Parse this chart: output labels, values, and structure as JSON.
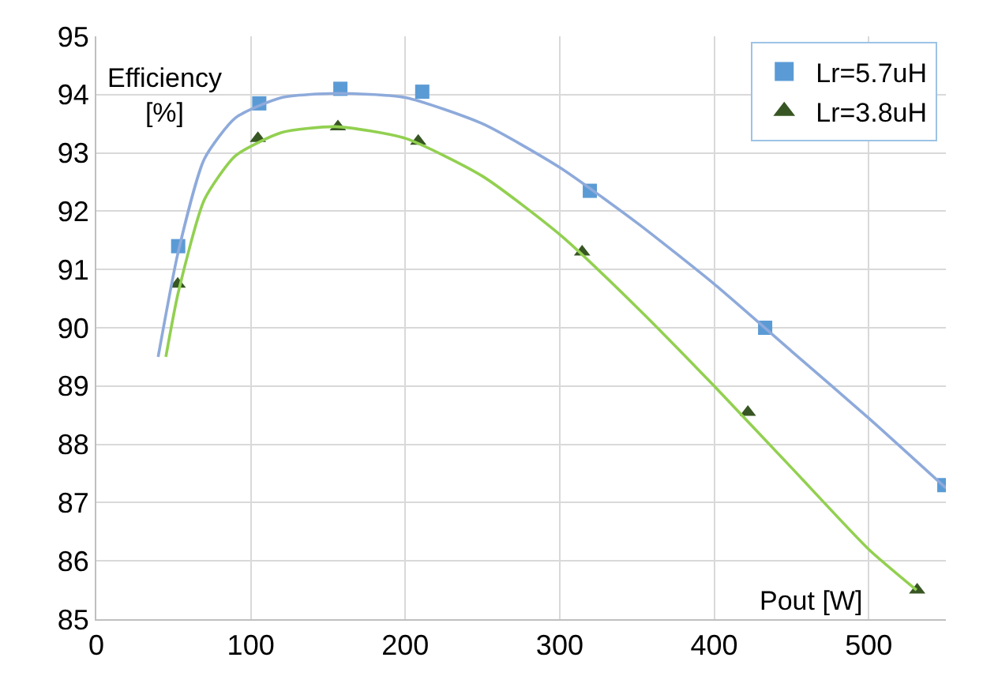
{
  "chart_data": {
    "type": "scatter",
    "xlabel": "Pout [W]",
    "ylabel": "Efficiency\n[%]",
    "xlim": [
      0,
      550
    ],
    "xticks": [
      0,
      100,
      200,
      300,
      400,
      500
    ],
    "ylim": [
      85,
      95
    ],
    "yticks": [
      85,
      86,
      87,
      88,
      89,
      90,
      91,
      92,
      93,
      94,
      95
    ],
    "grid": true,
    "legend": "top right",
    "series": [
      {
        "name": "Lr=5.7uH",
        "color": "#5b9bd5",
        "marker": "square",
        "x": [
          53,
          105.5,
          158,
          211,
          319.5,
          433,
          549
        ],
        "values": [
          91.4,
          93.85,
          94.1,
          94.05,
          92.35,
          90.0,
          87.3
        ]
      },
      {
        "name": "Lr=3.8uH",
        "color": "#375623",
        "marker": "triangle",
        "x": [
          52.7,
          104.6,
          156.4,
          208.4,
          314.5,
          421.8,
          531.4
        ],
        "values": [
          90.75,
          93.25,
          93.45,
          93.2,
          91.3,
          88.55,
          85.5
        ]
      },
      {
        "type": "line",
        "color": "#8eaadb",
        "marker": "none",
        "x": [
          40,
          53,
          70,
          90,
          120,
          155,
          200,
          250,
          300,
          350,
          400,
          450,
          500,
          550
        ],
        "values": [
          89.5,
          91.3,
          92.9,
          93.6,
          93.95,
          94.02,
          93.95,
          93.5,
          92.75,
          91.8,
          90.75,
          89.6,
          88.45,
          87.25
        ]
      },
      {
        "type": "line",
        "color": "#92d050",
        "marker": "none",
        "x": [
          45,
          53,
          70,
          90,
          120,
          155,
          200,
          250,
          300,
          350,
          400,
          450,
          500,
          531
        ],
        "values": [
          89.5,
          90.6,
          92.2,
          92.95,
          93.35,
          93.45,
          93.25,
          92.6,
          91.6,
          90.35,
          89.0,
          87.6,
          86.2,
          85.5
        ]
      }
    ]
  }
}
